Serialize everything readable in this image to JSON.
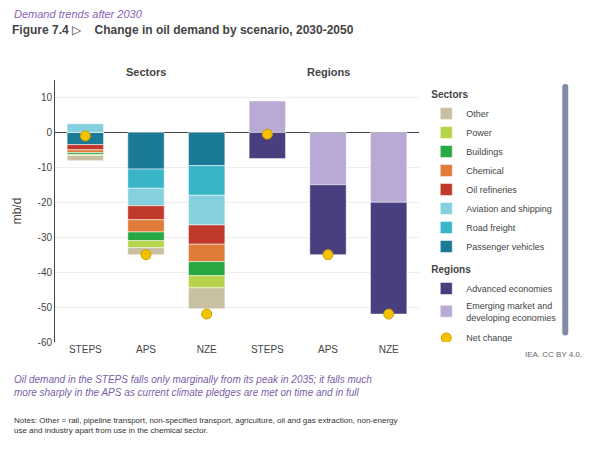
{
  "chart_data": {
    "type": "bar",
    "stacked": true,
    "supertitle": "Demand trends after 2030",
    "title": "Figure 7.4 ▷    Change in oil demand by scenario, 2030-2050",
    "subtitle": "Oil demand in the STEPS falls only marginally from its peak in 2035; it falls much\nmore sharply in the APS as current climate pledges are met on time and in full",
    "notes": "Notes: Other = rail, pipeline transport, non-specified transport, agriculture, oil and gas extraction, non-energy\nuse and industry apart from use in the chemical sector.",
    "source": "IEA. CC BY 4.0.",
    "ylabel": "mb/d",
    "categories": [
      "STEPS",
      "APS",
      "NZE",
      "STEPS",
      "APS",
      "NZE"
    ],
    "annotations": [
      {
        "text": "Sectors",
        "x": 1
      },
      {
        "text": "Regions",
        "x": 4
      }
    ],
    "series": [
      {
        "name": "Passenger vehicles",
        "color": "#1b7a96",
        "values": [
          -3.5,
          -10.5,
          -9.5,
          null,
          null,
          null
        ]
      },
      {
        "name": "Road freight",
        "color": "#3ab5c8",
        "values": [
          0.0,
          -5.5,
          -8.5,
          null,
          null,
          null
        ]
      },
      {
        "name": "Aviation and shipping",
        "color": "#85d0de",
        "values": [
          2.5,
          -5.0,
          -8.5,
          null,
          null,
          null
        ]
      },
      {
        "name": "Oil refineries",
        "color": "#c0392b",
        "values": [
          -1.5,
          -4.0,
          -5.5,
          null,
          null,
          null
        ]
      },
      {
        "name": "Chemical",
        "color": "#e07b39",
        "values": [
          -0.8,
          -3.5,
          -5.0,
          null,
          null,
          null
        ]
      },
      {
        "name": "Buildings",
        "color": "#27a843",
        "values": [
          -0.5,
          -2.5,
          -4.0,
          null,
          null,
          null
        ]
      },
      {
        "name": "Power",
        "color": "#b8d44b",
        "values": [
          -0.3,
          -2.0,
          -3.5,
          null,
          null,
          null
        ]
      },
      {
        "name": "Other",
        "color": "#c8c0a0",
        "values": [
          -1.5,
          -2.0,
          -6.0,
          null,
          null,
          null
        ]
      },
      {
        "name": "Emerging market and developing economies",
        "color": "#b8aad4",
        "values": [
          null,
          null,
          null,
          9.0,
          -15.0,
          -20.0
        ]
      },
      {
        "name": "Advanced economies",
        "color": "#4a3f7e",
        "values": [
          null,
          null,
          null,
          -7.5,
          -20.0,
          -32.0
        ]
      },
      {
        "name": "Net change",
        "type": "scatter",
        "marker": "circle",
        "color": "#f5c200",
        "values": [
          -1.0,
          -35.0,
          -52.0,
          -0.5,
          -35.0,
          -52.0
        ]
      }
    ],
    "ylim": [
      -60,
      15
    ],
    "yticks": [
      -60,
      -50,
      -40,
      -30,
      -20,
      -10,
      0,
      10
    ],
    "grid": true,
    "legend": "right"
  }
}
